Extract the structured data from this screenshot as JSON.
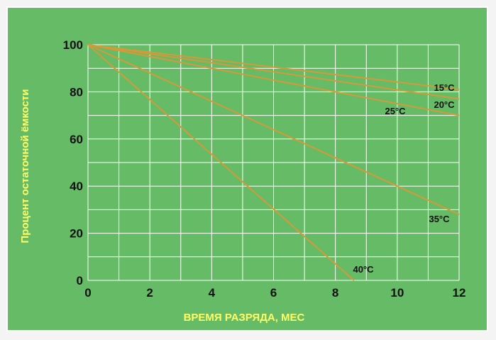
{
  "colors": {
    "page_background": "#f4f4f4",
    "panel_background": "#66bb66",
    "panel_border": "#ffffff",
    "grid": "#ffffff",
    "series_line": "#d29a3a",
    "axis_text": "#111111",
    "axis_title": "#ffff66"
  },
  "chart_data": {
    "type": "line",
    "title": "",
    "xlabel": "ВРЕМЯ РАЗРЯДА, МЕС",
    "ylabel": "Процент остаточной ёмкости",
    "xlim": [
      0,
      12
    ],
    "ylim": [
      0,
      100
    ],
    "x_ticks": [
      "0",
      "2",
      "4",
      "6",
      "8",
      "10",
      "12"
    ],
    "y_ticks": [
      "0",
      "20",
      "40",
      "60",
      "80",
      "100"
    ],
    "grid": true,
    "legend": "none (series labels at line ends)",
    "series": [
      {
        "name": "15°C",
        "points": [
          [
            0,
            100
          ],
          [
            12,
            81
          ]
        ]
      },
      {
        "name": "20°C",
        "points": [
          [
            0,
            100
          ],
          [
            12,
            77
          ]
        ]
      },
      {
        "name": "25°C",
        "points": [
          [
            0,
            100
          ],
          [
            12,
            70
          ]
        ]
      },
      {
        "name": "35°C",
        "points": [
          [
            0,
            100
          ],
          [
            12,
            28
          ]
        ]
      },
      {
        "name": "40°C",
        "points": [
          [
            0,
            100
          ],
          [
            8.6,
            0
          ]
        ]
      }
    ]
  }
}
